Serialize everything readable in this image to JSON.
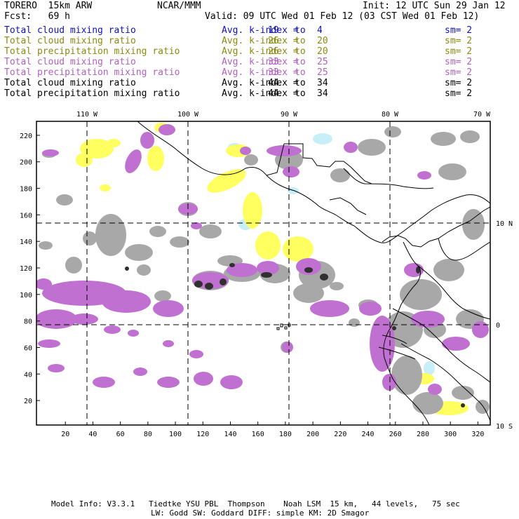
{
  "header": {
    "model": "TORERO  15km ARW",
    "org": "NCAR/MMM",
    "init": "Init: 12 UTC Sun 29 Jan 12",
    "fcst": "Fcst:   69 h",
    "valid": "Valid: 09 UTC Wed 01 Feb 12 (03 CST Wed 01 Feb 12)"
  },
  "fields": [
    {
      "name": "Total cloud mixing ratio",
      "label": "Avg. k-index =",
      "a": "19",
      "to": "to",
      "b": "4",
      "sm": "sm= 2",
      "color": "#1010c0"
    },
    {
      "name": "Total cloud mixing ratio",
      "label": "Avg. k-index =",
      "a": "26",
      "to": "to",
      "b": "20",
      "sm": "sm= 2",
      "color": "#8a8a10"
    },
    {
      "name": "Total precipitation mixing ratio",
      "label": "Avg. k-index =",
      "a": "26",
      "to": "to",
      "b": "20",
      "sm": "sm= 2",
      "color": "#8a8a10"
    },
    {
      "name": "Total cloud mixing ratio",
      "label": "Avg. k-index =",
      "a": "33",
      "to": "to",
      "b": "25",
      "sm": "sm= 2",
      "color": "#b060c0"
    },
    {
      "name": "Total precipitation mixing ratio",
      "label": "Avg. k-index =",
      "a": "33",
      "to": "to",
      "b": "25",
      "sm": "sm= 2",
      "color": "#b060c0"
    },
    {
      "name": "Total cloud mixing ratio",
      "label": "Avg. k-index =",
      "a": "44",
      "to": "to",
      "b": "34",
      "sm": "sm= 2",
      "color": "#000000"
    },
    {
      "name": "Total precipitation mixing ratio",
      "label": "Avg. k-index =",
      "a": "44",
      "to": "to",
      "b": "34",
      "sm": "sm= 2",
      "color": "#000000"
    }
  ],
  "map": {
    "lon_labels": [
      "110 W",
      "100 W",
      "90 W",
      "80 W",
      "70 W"
    ],
    "lat_labels": [
      "10 N",
      "0",
      "10 S"
    ],
    "x_ticks": [
      "20",
      "40",
      "60",
      "80",
      "100",
      "120",
      "140",
      "160",
      "180",
      "200",
      "220",
      "240",
      "260",
      "280",
      "300",
      "320"
    ],
    "y_ticks": [
      "220",
      "200",
      "180",
      "160",
      "140",
      "120",
      "100",
      "80",
      "60",
      "40",
      "20"
    ],
    "colors": {
      "cyan": "#c8eef8",
      "yellow": "#ffff60",
      "purple": "#c070d0",
      "gray": "#a8a8a8",
      "black": "#303030"
    }
  },
  "footer": {
    "line1": "Model Info: V3.3.1   Tiedtke YSU PBL  Thompson    Noah LSM  15 km,   44 levels,   75 sec",
    "line2": "LW: Godd SW: Goddard DIFF: simple KM: 2D Smagor"
  }
}
